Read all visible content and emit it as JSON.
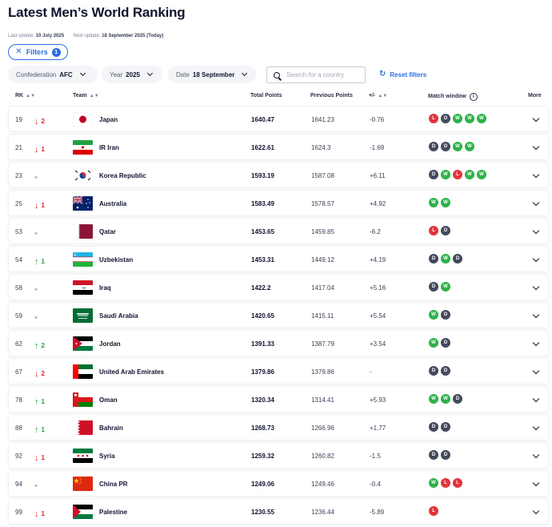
{
  "page": {
    "title": "Latest Men’s World Ranking",
    "last_update_label": "Last update:",
    "last_update": "10 July 2025",
    "next_update_label": "Next update:",
    "next_update": "18 September 2025 (Today)"
  },
  "filters": {
    "label": "Filters",
    "count": "1"
  },
  "selectors": {
    "confederation_label": "Confederation",
    "confederation_value": "AFC",
    "year_label": "Year",
    "year_value": "2025",
    "date_label": "Date",
    "date_value": "18 September"
  },
  "search": {
    "placeholder": "Search for a country"
  },
  "reset_label": "Reset filters",
  "columns": {
    "rank": "RK",
    "team": "Team",
    "total": "Total Points",
    "previous": "Previous Points",
    "diff": "+/-",
    "match_window": "Match window",
    "more": "More"
  },
  "colors": {
    "accent": "#2c6ee0",
    "win": "#2fb24b",
    "draw": "#434a5c",
    "loss": "#e2343c",
    "up": "#1fa347",
    "down": "#d8262e"
  },
  "rows": [
    {
      "rank": "19",
      "move": "down",
      "move_value": "2",
      "team": "Japan",
      "flag": "japan-flag",
      "total": "1640.47",
      "previous": "1641.23",
      "diff": "-0.76",
      "results": [
        "L",
        "D",
        "W",
        "W",
        "W"
      ]
    },
    {
      "rank": "21",
      "move": "down",
      "move_value": "1",
      "team": "IR Iran",
      "flag": "iran-flag",
      "total": "1622.61",
      "previous": "1624.3",
      "diff": "-1.69",
      "results": [
        "D",
        "D",
        "W",
        "W"
      ]
    },
    {
      "rank": "23",
      "move": "same",
      "move_value": "",
      "team": "Korea Republic",
      "flag": "korea-flag",
      "total": "1593.19",
      "previous": "1587.08",
      "diff": "+6.11",
      "results": [
        "D",
        "W",
        "L",
        "W",
        "W"
      ]
    },
    {
      "rank": "25",
      "move": "down",
      "move_value": "1",
      "team": "Australia",
      "flag": "australia-flag",
      "total": "1583.49",
      "previous": "1578.57",
      "diff": "+4.92",
      "results": [
        "W",
        "W"
      ]
    },
    {
      "rank": "53",
      "move": "same",
      "move_value": "",
      "team": "Qatar",
      "flag": "qatar-flag",
      "total": "1453.65",
      "previous": "1459.85",
      "diff": "-6.2",
      "results": [
        "L",
        "D"
      ]
    },
    {
      "rank": "54",
      "move": "up",
      "move_value": "1",
      "team": "Uzbekistan",
      "flag": "uzbekistan-flag",
      "total": "1453.31",
      "previous": "1449.12",
      "diff": "+4.19",
      "results": [
        "D",
        "W",
        "D"
      ]
    },
    {
      "rank": "58",
      "move": "same",
      "move_value": "",
      "team": "Iraq",
      "flag": "iraq-flag",
      "total": "1422.2",
      "previous": "1417.04",
      "diff": "+5.16",
      "results": [
        "D",
        "W"
      ]
    },
    {
      "rank": "59",
      "move": "same",
      "move_value": "",
      "team": "Saudi Arabia",
      "flag": "saudi-flag",
      "total": "1420.65",
      "previous": "1415.11",
      "diff": "+5.54",
      "results": [
        "W",
        "D"
      ]
    },
    {
      "rank": "62",
      "move": "up",
      "move_value": "2",
      "team": "Jordan",
      "flag": "jordan-flag",
      "total": "1391.33",
      "previous": "1387.79",
      "diff": "+3.54",
      "results": [
        "W",
        "D"
      ]
    },
    {
      "rank": "67",
      "move": "down",
      "move_value": "2",
      "team": "United Arab Emirates",
      "flag": "uae-flag",
      "total": "1379.86",
      "previous": "1379.86",
      "diff": "-",
      "results": [
        "D",
        "D"
      ]
    },
    {
      "rank": "78",
      "move": "up",
      "move_value": "1",
      "team": "Oman",
      "flag": "oman-flag",
      "total": "1320.34",
      "previous": "1314.41",
      "diff": "+5.93",
      "results": [
        "W",
        "W",
        "D"
      ]
    },
    {
      "rank": "88",
      "move": "up",
      "move_value": "1",
      "team": "Bahrain",
      "flag": "bahrain-flag",
      "total": "1268.73",
      "previous": "1266.96",
      "diff": "+1.77",
      "results": [
        "D",
        "D"
      ]
    },
    {
      "rank": "92",
      "move": "down",
      "move_value": "1",
      "team": "Syria",
      "flag": "syria-flag",
      "total": "1259.32",
      "previous": "1260.82",
      "diff": "-1.5",
      "results": [
        "D",
        "D"
      ]
    },
    {
      "rank": "94",
      "move": "same",
      "move_value": "",
      "team": "China PR",
      "flag": "china-flag",
      "total": "1249.06",
      "previous": "1249.46",
      "diff": "-0.4",
      "results": [
        "W",
        "L",
        "L"
      ]
    },
    {
      "rank": "99",
      "move": "down",
      "move_value": "1",
      "team": "Palestine",
      "flag": "palestine-flag",
      "total": "1230.55",
      "previous": "1236.44",
      "diff": "-5.89",
      "results": [
        "L"
      ]
    }
  ]
}
